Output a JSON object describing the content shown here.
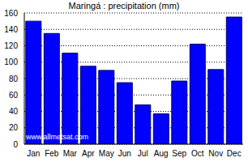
{
  "chart_data": {
    "type": "bar",
    "title": "Maringá : precipitation (mm)",
    "categories": [
      "Jan",
      "Feb",
      "Mar",
      "Apr",
      "May",
      "Jun",
      "Jul",
      "Aug",
      "Sep",
      "Oct",
      "Nov",
      "Dec"
    ],
    "values": [
      150,
      135,
      111,
      95,
      90,
      75,
      48,
      37,
      77,
      122,
      91,
      155
    ],
    "color": "#0000ff",
    "ylim": [
      0,
      160
    ],
    "yticks": [
      0,
      20,
      40,
      60,
      80,
      100,
      120,
      140,
      160
    ],
    "grid": true,
    "annotation": "www.allmetsat.com"
  }
}
